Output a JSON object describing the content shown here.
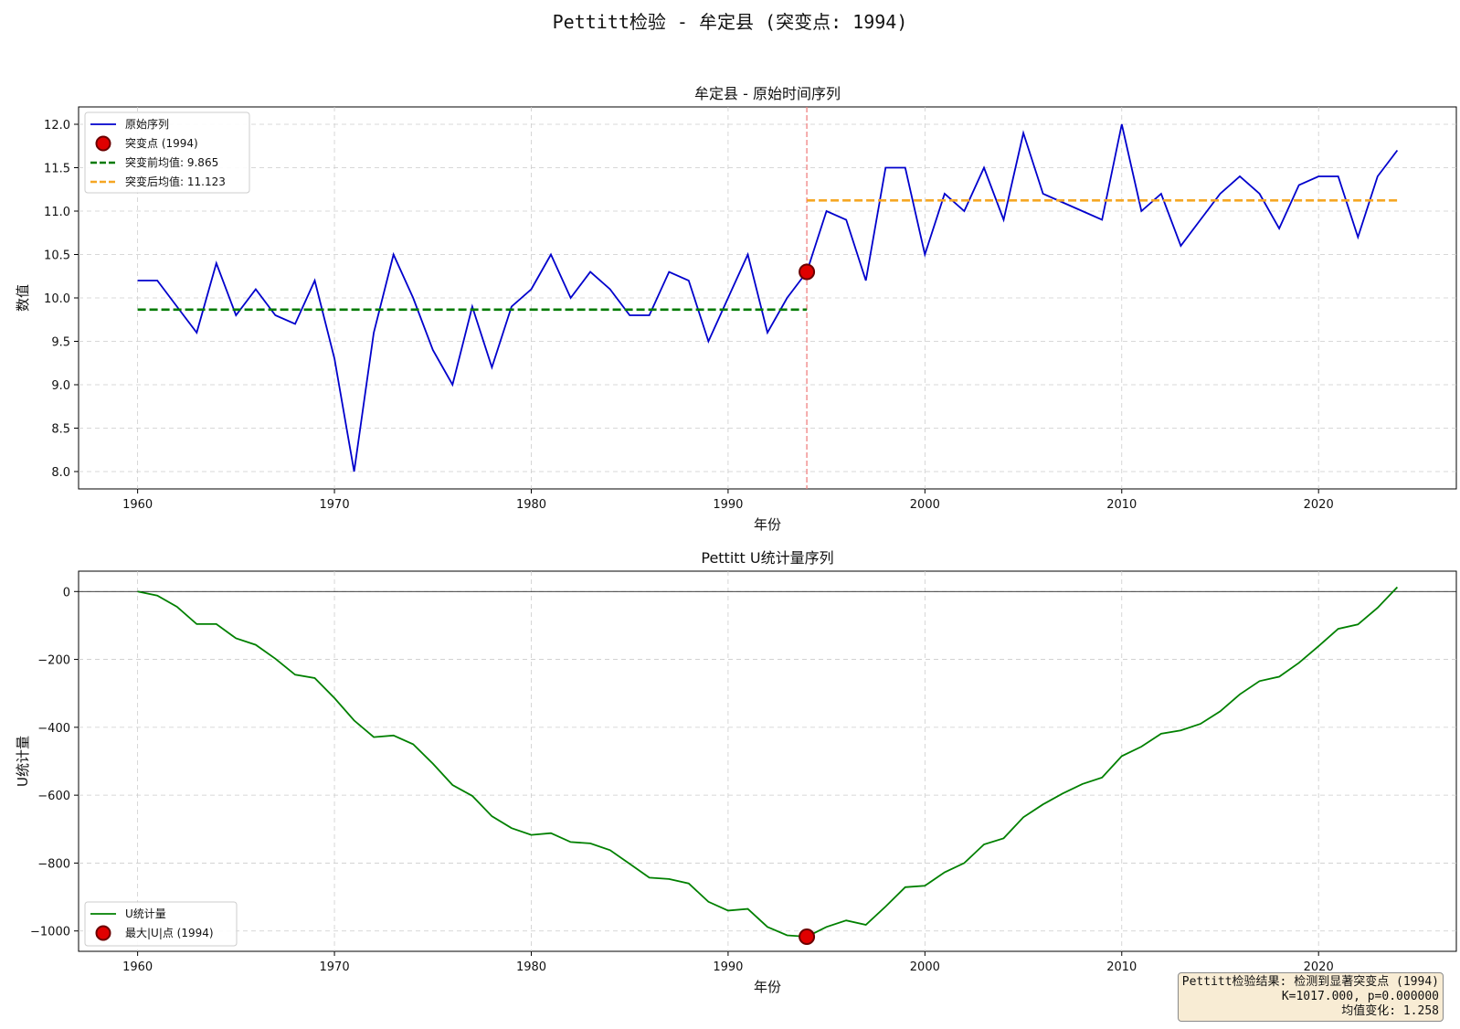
{
  "suptitle": "Pettitt检验 - 牟定县 (突变点: 1994)",
  "chart_data": [
    {
      "type": "line",
      "title": "牟定县 - 原始时间序列",
      "xlabel": "年份",
      "ylabel": "数值",
      "xlim": [
        1957,
        2027
      ],
      "ylim": [
        7.8,
        12.2
      ],
      "x_ticks": [
        "1960",
        "1970",
        "1980",
        "1990",
        "2000",
        "2010",
        "2020"
      ],
      "y_ticks": [
        "8.0",
        "8.5",
        "9.0",
        "9.5",
        "10.0",
        "10.5",
        "11.0",
        "11.5",
        "12.0"
      ],
      "grid": true,
      "legend_position": "upper-left",
      "series": [
        {
          "name": "原始序列",
          "color": "#0000cc",
          "x": [
            1960,
            1961,
            1962,
            1963,
            1964,
            1965,
            1966,
            1967,
            1968,
            1969,
            1970,
            1971,
            1972,
            1973,
            1974,
            1975,
            1976,
            1977,
            1978,
            1979,
            1980,
            1981,
            1982,
            1983,
            1984,
            1985,
            1986,
            1987,
            1988,
            1989,
            1990,
            1991,
            1992,
            1993,
            1994,
            1995,
            1996,
            1997,
            1998,
            1999,
            2000,
            2001,
            2002,
            2003,
            2004,
            2005,
            2006,
            2007,
            2008,
            2009,
            2010,
            2011,
            2012,
            2013,
            2014,
            2015,
            2016,
            2017,
            2018,
            2019,
            2020,
            2021,
            2022,
            2023,
            2024
          ],
          "values": [
            10.2,
            10.2,
            9.9,
            9.6,
            10.4,
            9.8,
            10.1,
            9.8,
            9.7,
            10.2,
            9.3,
            8.0,
            9.6,
            10.5,
            10.0,
            9.4,
            9.0,
            9.9,
            9.2,
            9.9,
            10.1,
            10.5,
            10.0,
            10.3,
            10.1,
            9.8,
            9.8,
            10.3,
            10.2,
            9.5,
            10.0,
            10.5,
            9.6,
            10.0,
            10.3,
            11.0,
            10.9,
            10.2,
            11.5,
            11.5,
            10.5,
            11.2,
            11.0,
            11.5,
            10.9,
            11.9,
            11.2,
            11.1,
            11.0,
            10.9,
            12.0,
            11.0,
            11.2,
            10.6,
            10.9,
            11.2,
            11.4,
            11.2,
            10.8,
            11.3,
            11.4,
            11.4,
            10.7,
            11.4,
            11.7
          ]
        },
        {
          "name": "突变前均值: 9.865",
          "color": "#007a00",
          "style": "dashed",
          "x": [
            1960,
            1994
          ],
          "values": [
            9.865,
            9.865
          ]
        },
        {
          "name": "突变后均值: 11.123",
          "color": "#f5a623",
          "style": "dashed",
          "x": [
            1994,
            2024
          ],
          "values": [
            11.123,
            11.123
          ]
        }
      ],
      "change_point": {
        "name": "突变点 (1994)",
        "x": 1994,
        "y": 10.3,
        "color": "#e00000",
        "vline_color": "#f08080"
      }
    },
    {
      "type": "line",
      "title": "Pettitt U统计量序列",
      "xlabel": "年份",
      "ylabel": "U统计量",
      "xlim": [
        1957,
        2027
      ],
      "ylim": [
        -1060,
        60
      ],
      "x_ticks": [
        "1960",
        "1970",
        "1980",
        "1990",
        "2000",
        "2010",
        "2020"
      ],
      "y_ticks": [
        "0",
        "−200",
        "−400",
        "−600",
        "−800",
        "−1000"
      ],
      "y_tick_values": [
        0,
        -200,
        -400,
        -600,
        -800,
        -1000
      ],
      "grid": true,
      "legend_position": "lower-left",
      "series": [
        {
          "name": "U统计量",
          "color": "#008000",
          "x": [
            1960,
            1961,
            1962,
            1963,
            1964,
            1965,
            1966,
            1967,
            1968,
            1969,
            1970,
            1971,
            1972,
            1973,
            1974,
            1975,
            1976,
            1977,
            1978,
            1979,
            1980,
            1981,
            1982,
            1983,
            1984,
            1985,
            1986,
            1987,
            1988,
            1989,
            1990,
            1991,
            1992,
            1993,
            1994,
            1995,
            1996,
            1997,
            1998,
            1999,
            2000,
            2001,
            2002,
            2003,
            2004,
            2005,
            2006,
            2007,
            2008,
            2009,
            2010,
            2011,
            2012,
            2013,
            2014,
            2015,
            2016,
            2017,
            2018,
            2019,
            2020,
            2021,
            2022,
            2023,
            2024
          ],
          "values": [
            0,
            -12,
            -45,
            -96,
            -96,
            -138,
            -157,
            -198,
            -245,
            -255,
            -314,
            -380,
            -429,
            -424,
            -450,
            -507,
            -570,
            -602,
            -662,
            -697,
            -717,
            -712,
            -738,
            -742,
            -762,
            -802,
            -843,
            -847,
            -860,
            -914,
            -940,
            -935,
            -988,
            -1013,
            -1017,
            -988,
            -969,
            -982,
            -928,
            -871,
            -867,
            -827,
            -800,
            -745,
            -727,
            -665,
            -627,
            -595,
            -567,
            -548,
            -485,
            -457,
            -419,
            -409,
            -390,
            -353,
            -303,
            -264,
            -251,
            -210,
            -161,
            -110,
            -97,
            -48,
            13
          ]
        }
      ],
      "max_point": {
        "name": "最大|U|点 (1994)",
        "x": 1994,
        "y": -1017,
        "color": "#e00000"
      }
    }
  ],
  "result_box": {
    "line1": "Pettitt检验结果: 检测到显著突变点 (1994)",
    "line2": "K=1017.000, p=0.000000",
    "line3": "均值变化: 1.258"
  }
}
